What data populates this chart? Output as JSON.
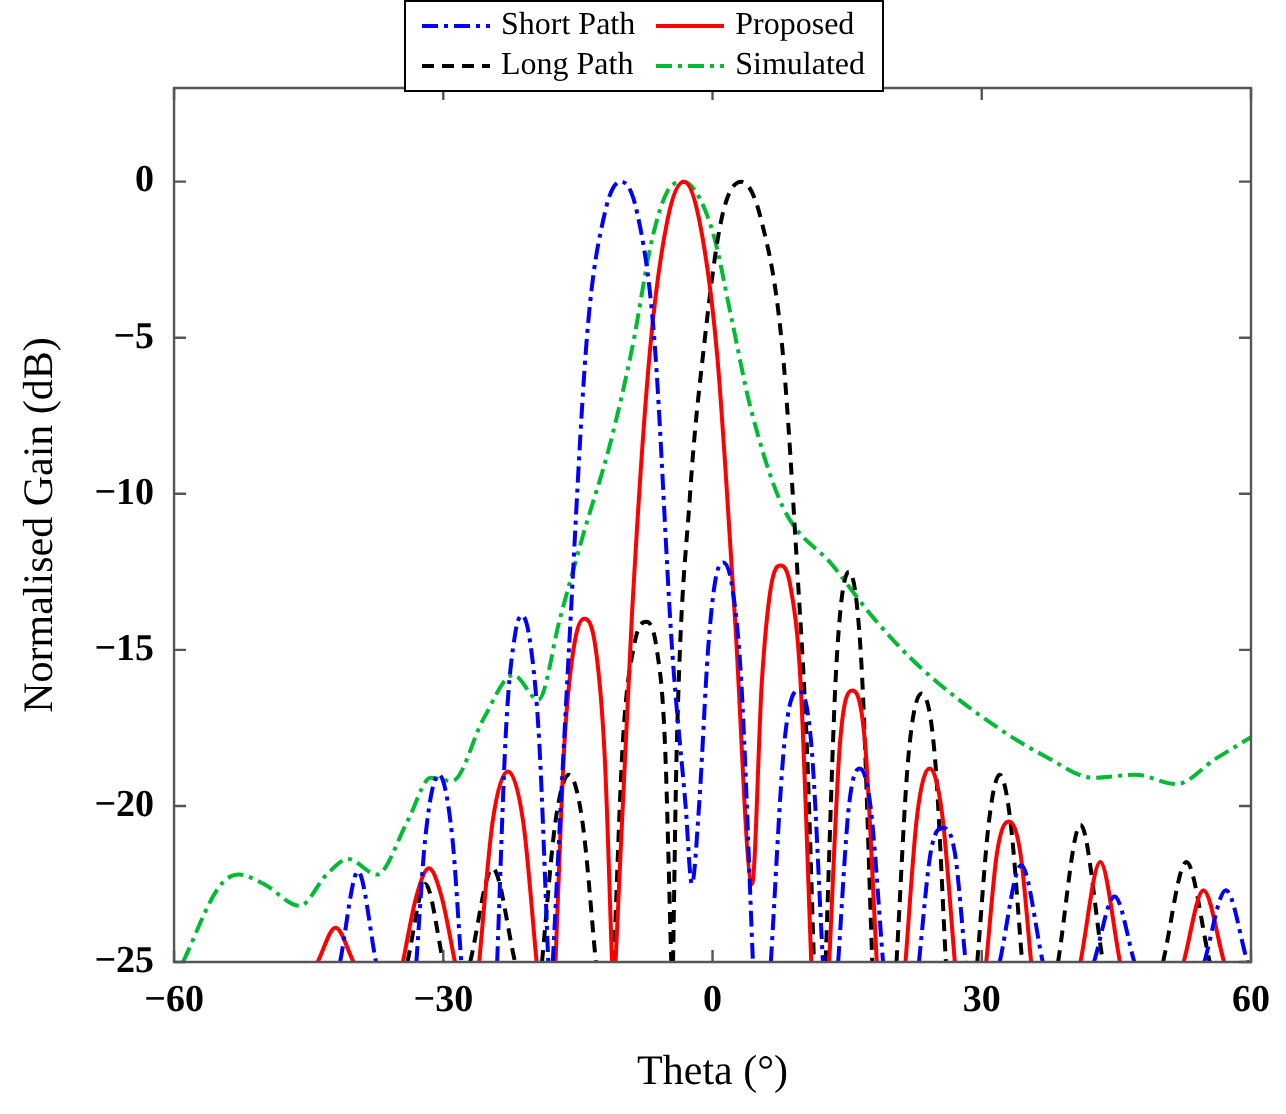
{
  "chart_data": {
    "type": "line",
    "xlabel": "Theta (°)",
    "ylabel": "Normalised Gain (dB)",
    "xlim": [
      -60,
      60
    ],
    "xticks": [
      -60,
      -30,
      0,
      30,
      60
    ],
    "ylim": [
      -25,
      3
    ],
    "yticks": [
      -25,
      -20,
      -15,
      -10,
      -5,
      0
    ],
    "grid": false,
    "legend": "top",
    "marker": "none",
    "series": [
      {
        "name": "Short Path",
        "color": "#0000ff",
        "line_style": "dashdot",
        "x": [
          -41.5,
          -39.5,
          -37.5,
          null,
          -33,
          -32,
          -30.5,
          -29,
          -28,
          null,
          -24,
          -23,
          -22,
          -21.2,
          -20.2,
          -19.3,
          -18.3,
          null,
          -17.8,
          -16,
          -14,
          -12,
          -10.2,
          -8.4,
          -6.5,
          -4.5,
          -3,
          -2.3,
          -1.5,
          -0.5,
          0.3,
          1.2,
          2.2,
          3.2,
          4.5,
          null,
          6.5,
          8,
          9.5,
          11,
          12.3,
          null,
          14,
          15.2,
          16.4,
          17.6,
          19,
          null,
          23,
          24.3,
          25.6,
          27,
          28.2,
          null,
          32,
          34.4,
          36.8,
          null,
          42.5,
          44.8,
          47,
          null,
          54.8,
          57.2,
          59.6
        ],
        "values": [
          -25,
          -22.1,
          -25,
          null,
          -25,
          -21,
          -19,
          -21,
          -25,
          null,
          -25,
          -17.5,
          -14.5,
          -13.9,
          -15,
          -18,
          -25,
          null,
          -25,
          -15,
          -5,
          -1,
          0,
          -1,
          -5,
          -15,
          -20,
          -22.5,
          -20,
          -15,
          -12.8,
          -12.2,
          -13,
          -16,
          -25,
          null,
          -25,
          -18,
          -16.3,
          -18,
          -25,
          null,
          -25,
          -20,
          -18.8,
          -20,
          -25,
          null,
          -25,
          -21.5,
          -20.7,
          -21.5,
          -25,
          null,
          -25,
          -21.9,
          -25,
          null,
          -25,
          -22.9,
          -25,
          null,
          -25,
          -22.7,
          -25
        ]
      },
      {
        "name": "Proposed",
        "color": "#ff0000",
        "line_style": "solid",
        "x": [
          -44,
          -42,
          -40,
          null,
          -34.5,
          -33,
          -31.6,
          -30.2,
          -28.7,
          null,
          -26,
          -24.5,
          -22.8,
          -21.1,
          -19.6,
          null,
          -17.5,
          -16.5,
          -15.5,
          -14.3,
          -13,
          -12,
          -11.2,
          null,
          -10.8,
          -9,
          -7,
          -5,
          -3.2,
          -1.5,
          0.5,
          2.5,
          4.4,
          5.5,
          6.5,
          7.6,
          8.7,
          9.8,
          11,
          null,
          13,
          14.2,
          15.6,
          17,
          18.3,
          null,
          21.5,
          22.8,
          24.2,
          25.6,
          27,
          null,
          30.5,
          31.7,
          33,
          34.3,
          35.5,
          null,
          41,
          43.2,
          45.4,
          null,
          52.5,
          54.7,
          57
        ],
        "values": [
          -25,
          -23.9,
          -25,
          null,
          -25,
          -22.9,
          -22,
          -22.9,
          -25,
          null,
          -25,
          -20.5,
          -18.9,
          -20.5,
          -25,
          null,
          -25,
          -18,
          -15,
          -14,
          -15,
          -18.5,
          -25,
          null,
          -25,
          -14,
          -5.5,
          -1.2,
          0,
          -1.2,
          -5.5,
          -14,
          -22.5,
          -16,
          -13,
          -12.3,
          -13,
          -16,
          -25,
          null,
          -25,
          -18,
          -16.3,
          -18,
          -25,
          null,
          -25,
          -20.3,
          -18.8,
          -20.3,
          -25,
          null,
          -25,
          -21.5,
          -20.5,
          -21.5,
          -25,
          null,
          -25,
          -21.8,
          -25,
          null,
          -25,
          -22.7,
          -25
        ]
      },
      {
        "name": "Long Path",
        "color": "#000000",
        "line_style": "dashed",
        "x": [
          -34,
          -32,
          -30,
          null,
          -27,
          -24.5,
          -22,
          null,
          -19,
          -17.5,
          -16,
          -14.5,
          -13,
          null,
          -11,
          -10,
          -8.7,
          -7.4,
          -6.2,
          -5.3,
          -4.6,
          null,
          -4.4,
          -4,
          -2.5,
          -1,
          1,
          3.2,
          5.4,
          7.8,
          9.5,
          10.5,
          11.3,
          null,
          12.6,
          13.8,
          15.2,
          16.6,
          17.8,
          null,
          20.5,
          21.8,
          23.3,
          24.8,
          26,
          null,
          29.5,
          30.8,
          32,
          33.2,
          34.5,
          null,
          38.5,
          41,
          43.5,
          null,
          50.2,
          52.8,
          55.4
        ],
        "values": [
          -25,
          -22.5,
          -25,
          null,
          -25,
          -22,
          -25,
          null,
          -25,
          -20.5,
          -19,
          -20.5,
          -25,
          null,
          -25,
          -18,
          -14.8,
          -14.1,
          -15,
          -18,
          -25,
          null,
          -25,
          -18.3,
          -10,
          -5.4,
          -1.2,
          0,
          -1.2,
          -5.4,
          -12.7,
          -18,
          -25,
          null,
          -25,
          -15.5,
          -12.5,
          -15.5,
          -25,
          null,
          -25,
          -18.5,
          -16.4,
          -18.5,
          -25,
          null,
          -25,
          -20.5,
          -19,
          -20.5,
          -25,
          null,
          -25,
          -20.6,
          -25,
          null,
          -25,
          -21.8,
          -25
        ]
      },
      {
        "name": "Simulated",
        "color": "#00bb33",
        "line_style": "dashdot",
        "x": [
          -59,
          -55,
          -52.8,
          -50,
          -46,
          -43,
          -40.6,
          -37.4,
          -34,
          -31.4,
          -29,
          -25.5,
          -22.2,
          -19.4,
          -17,
          -14.3,
          -11.5,
          -9,
          -6.7,
          -5,
          -3.2,
          -1.5,
          0.2,
          2.2,
          4.2,
          7.8,
          13.4,
          18,
          23.3,
          31.8,
          37,
          42.5,
          47.1,
          51.7,
          56,
          60
        ],
        "values": [
          -25,
          -22.6,
          -22.2,
          -22.5,
          -23.2,
          -22.2,
          -21.7,
          -22.2,
          -20.5,
          -19.1,
          -19.2,
          -17.2,
          -15.8,
          -16.6,
          -14,
          -11.2,
          -8.5,
          -5.4,
          -1.8,
          -0.3,
          0,
          -0.5,
          -1.8,
          -4.5,
          -7.2,
          -10.4,
          -12.3,
          -14,
          -15.6,
          -17.5,
          -18.4,
          -19.1,
          -19,
          -19.3,
          -18.5,
          -17.8
        ]
      }
    ]
  }
}
